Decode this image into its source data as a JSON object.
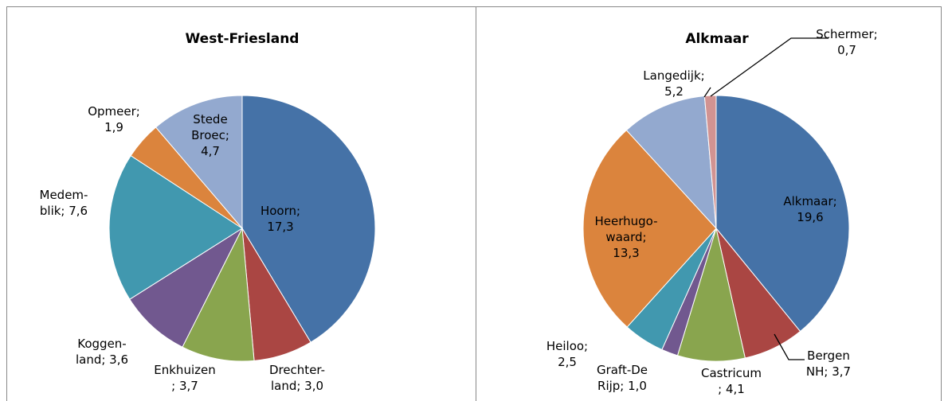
{
  "chart_data": [
    {
      "type": "pie",
      "title": "West-Friesland",
      "values": [
        17.3,
        3.0,
        3.7,
        3.6,
        7.6,
        1.9,
        4.7
      ],
      "value_labels": [
        "Hoorn;\n17,3",
        "Drechter-\nland; 3,0",
        "Enkhuizen\n; 3,7",
        "Koggen-\nland; 3,6",
        "Medem-\nblik; 7,6",
        "Opmeer;\n1,9",
        "Stede\nBroec;\n4,7"
      ],
      "colors": [
        "#4572a7",
        "#aa4643",
        "#89a54e",
        "#71588f",
        "#4198af",
        "#db843d",
        "#93a9cf"
      ]
    },
    {
      "type": "pie",
      "title": "Alkmaar",
      "values": [
        19.6,
        3.7,
        4.1,
        1.0,
        2.5,
        13.3,
        5.2,
        0.7
      ],
      "value_labels": [
        "Alkmaar;\n19,6",
        "Bergen\nNH; 3,7",
        "Castricum\n; 4,1",
        "Graft-De\nRijp; 1,0",
        "Heiloo;\n2,5",
        "Heerhugo-\nwaard;\n13,3",
        "Langedijk;\n5,2",
        "Schermer;\n0,7"
      ],
      "colors": [
        "#4572a7",
        "#aa4643",
        "#89a54e",
        "#71588f",
        "#4198af",
        "#db843d",
        "#93a9cf",
        "#d19392"
      ]
    }
  ]
}
